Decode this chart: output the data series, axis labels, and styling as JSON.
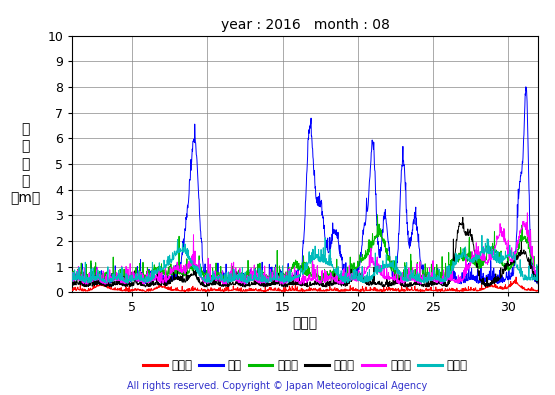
{
  "title": "year : 2016   month : 08",
  "xlabel": "（日）",
  "ylabel_chars": [
    "有",
    "義",
    "波",
    "高",
    "（m）"
  ],
  "xlim": [
    1,
    32
  ],
  "ylim": [
    0,
    10
  ],
  "yticks": [
    0,
    1,
    2,
    3,
    4,
    5,
    6,
    7,
    8,
    9,
    10
  ],
  "xticks": [
    5,
    10,
    15,
    20,
    25,
    30
  ],
  "legend_labels": [
    "上ノ国",
    "唐桑",
    "石廀崎",
    "経ヶ岸",
    "生月島",
    "屋久島"
  ],
  "line_colors": [
    "#ff0000",
    "#0000ff",
    "#00bb00",
    "#000000",
    "#ff00ff",
    "#00bbbb"
  ],
  "line_width": 0.7,
  "copyright_text": "All rights reserved. Copyright © Japan Meteorological Agency",
  "copyright_color": "#3333cc",
  "bg_color": "#ffffff",
  "grid_color": "#888888",
  "n_points": 1488,
  "seed": 12345
}
